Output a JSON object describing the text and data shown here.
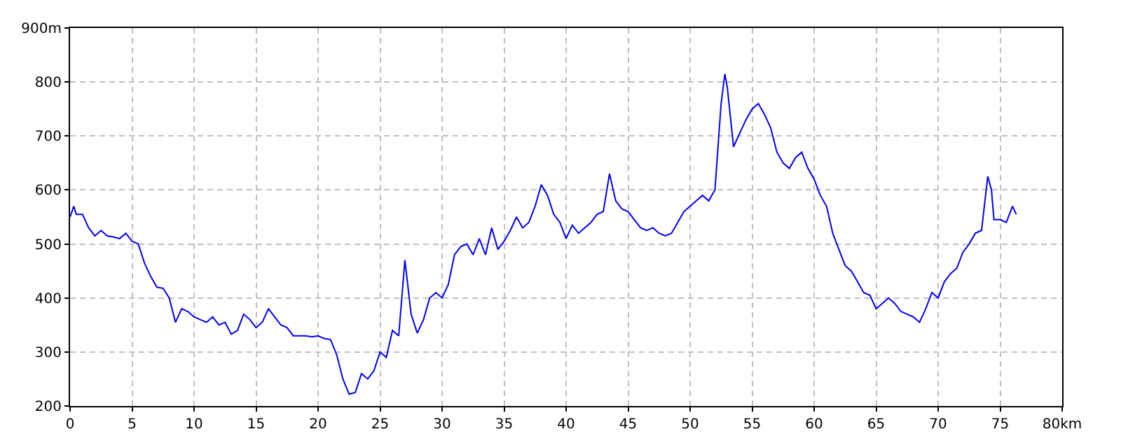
{
  "chart_data": {
    "type": "line",
    "grid": true,
    "marker": "none",
    "line_style": "solid",
    "xlim": [
      0,
      80
    ],
    "xticks": [
      0,
      5,
      10,
      15,
      20,
      25,
      30,
      35,
      40,
      45,
      50,
      55,
      60,
      65,
      70,
      75,
      {
        "value": 80,
        "label": "80km"
      }
    ],
    "ylim": [
      200,
      900
    ],
    "yticks": [
      200,
      300,
      400,
      500,
      600,
      700,
      800,
      {
        "value": 900,
        "label": "900m"
      }
    ],
    "series": [
      {
        "color": "#0000ff",
        "x": [
          0,
          0.3,
          0.5,
          1,
          1.5,
          2,
          2.5,
          3,
          3.5,
          4,
          4.5,
          5,
          5.5,
          6,
          6.5,
          7,
          7.5,
          8,
          8.5,
          9,
          9.5,
          10,
          10.5,
          11,
          11.5,
          12,
          12.5,
          13,
          13.5,
          14,
          14.5,
          15,
          15.5,
          16,
          16.5,
          17,
          17.5,
          18,
          18.5,
          19,
          19.5,
          20,
          20.5,
          21,
          21.5,
          22,
          22.5,
          23,
          23.5,
          24,
          24.5,
          25,
          25.5,
          26,
          26.5,
          27,
          27.5,
          28,
          28.5,
          29,
          29.5,
          30,
          30.5,
          31,
          31.5,
          32,
          32.5,
          33,
          33.5,
          34,
          34.5,
          35,
          35.5,
          36,
          36.5,
          37,
          37.5,
          38,
          38.5,
          39,
          39.5,
          40,
          40.5,
          41,
          41.5,
          42,
          42.5,
          43,
          43.5,
          44,
          44.5,
          45,
          45.5,
          46,
          46.5,
          47,
          47.5,
          48,
          48.5,
          49,
          49.5,
          50,
          50.5,
          51,
          51.5,
          52,
          52.5,
          52.8,
          53,
          53.5,
          54,
          54.5,
          55,
          55.5,
          56,
          56.5,
          57,
          57.5,
          58,
          58.5,
          59,
          59.5,
          60,
          60.5,
          61,
          61.5,
          62,
          62.5,
          63,
          63.5,
          64,
          64.5,
          65,
          65.5,
          66,
          66.5,
          67,
          67.5,
          68,
          68.5,
          69,
          69.5,
          70,
          70.5,
          71,
          71.5,
          72,
          72.5,
          73,
          73.5,
          74,
          74.3,
          74.5,
          75,
          75.5,
          76,
          76.3
        ],
        "values": [
          550,
          570,
          555,
          555,
          530,
          515,
          525,
          515,
          513,
          510,
          520,
          505,
          500,
          465,
          440,
          420,
          418,
          400,
          355,
          380,
          375,
          365,
          360,
          355,
          365,
          350,
          355,
          333,
          340,
          370,
          360,
          345,
          355,
          380,
          365,
          350,
          345,
          330,
          330,
          330,
          328,
          330,
          325,
          323,
          295,
          250,
          222,
          225,
          260,
          250,
          265,
          300,
          290,
          340,
          330,
          470,
          370,
          335,
          360,
          400,
          410,
          400,
          425,
          480,
          495,
          500,
          480,
          510,
          480,
          530,
          490,
          505,
          525,
          550,
          530,
          540,
          570,
          610,
          590,
          555,
          540,
          510,
          535,
          520,
          530,
          540,
          555,
          560,
          630,
          580,
          565,
          560,
          545,
          530,
          525,
          530,
          520,
          515,
          520,
          540,
          560,
          570,
          580,
          590,
          580,
          600,
          760,
          815,
          790,
          680,
          705,
          730,
          750,
          760,
          740,
          715,
          670,
          650,
          640,
          660,
          670,
          640,
          620,
          590,
          570,
          520,
          490,
          460,
          450,
          430,
          410,
          405,
          380,
          390,
          400,
          390,
          375,
          370,
          365,
          355,
          380,
          410,
          400,
          430,
          445,
          455,
          485,
          500,
          520,
          525,
          625,
          600,
          545,
          545,
          540,
          570,
          555
        ]
      }
    ]
  }
}
